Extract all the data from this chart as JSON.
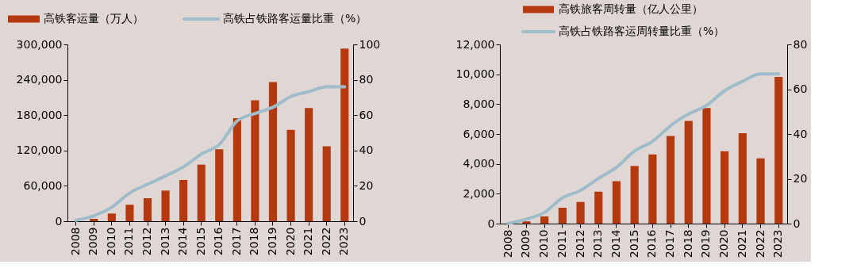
{
  "chart_data": [
    {
      "type": "bar",
      "legend": "top",
      "grid": false,
      "categories": [
        "2008",
        "2009",
        "2010",
        "2011",
        "2012",
        "2013",
        "2014",
        "2015",
        "2016",
        "2017",
        "2018",
        "2019",
        "2020",
        "2021",
        "2022",
        "2023"
      ],
      "series": [
        {
          "name": "高铁客运量（万人）",
          "color": "#b5390f",
          "values": [
            null,
            4000,
            13000,
            28000,
            39000,
            52000,
            70000,
            96000,
            122000,
            175000,
            205000,
            236000,
            155000,
            192000,
            127000,
            293000
          ]
        },
        {
          "name": "高铁占铁路客运量比重（%）",
          "type": "line",
          "axis": "y2",
          "color": "#9fbccb",
          "values": [
            0.5,
            3.1,
            7.9,
            16,
            20.9,
            25.6,
            30.7,
            38,
            43.4,
            56.7,
            60.9,
            64.5,
            70.5,
            73.3,
            76,
            76
          ]
        }
      ],
      "ylim": [
        0,
        300000
      ],
      "yticks": [
        0,
        {
          "value": 60000,
          "label": "60,000"
        },
        {
          "value": 120000,
          "label": "120,000"
        },
        {
          "value": 180000,
          "label": "180,000"
        },
        {
          "value": 240000,
          "label": "240,000"
        },
        {
          "value": 300000,
          "label": "300,000"
        }
      ],
      "y2lim": [
        0,
        100
      ],
      "y2ticks": [
        0,
        20,
        40,
        60,
        80,
        100
      ]
    },
    {
      "type": "bar",
      "legend": "top",
      "grid": false,
      "categories": [
        "2008",
        "2009",
        "2010",
        "2011",
        "2012",
        "2013",
        "2014",
        "2015",
        "2016",
        "2017",
        "2018",
        "2019",
        "2020",
        "2021",
        "2022",
        "2023"
      ],
      "series": [
        {
          "name": "高铁旅客周转量（亿人公里）",
          "color": "#b5390f",
          "values": [
            null,
            150,
            480,
            1060,
            1450,
            2140,
            2840,
            3860,
            4630,
            5870,
            6880,
            7740,
            4850,
            6050,
            4370,
            9820
          ]
        },
        {
          "name": "高铁占铁路客运周转量比重（%）",
          "type": "line",
          "axis": "y2",
          "color": "#9fbccb",
          "values": [
            0.1,
            2,
            5,
            11.5,
            14.8,
            20.2,
            25.1,
            32.4,
            36.7,
            43.7,
            48.9,
            52.8,
            59.3,
            63.5,
            66.8,
            66.8
          ]
        }
      ],
      "ylim": [
        0,
        12000
      ],
      "yticks": [
        0,
        {
          "value": 2000,
          "label": "2,000"
        },
        {
          "value": 4000,
          "label": "4,000"
        },
        {
          "value": 6000,
          "label": "6,000"
        },
        {
          "value": 8000,
          "label": "8,000"
        },
        {
          "value": 10000,
          "label": "10,000"
        },
        {
          "value": 12000,
          "label": "12,000"
        }
      ],
      "y2lim": [
        0,
        80
      ],
      "y2ticks": [
        0,
        20,
        40,
        60,
        80
      ]
    }
  ]
}
